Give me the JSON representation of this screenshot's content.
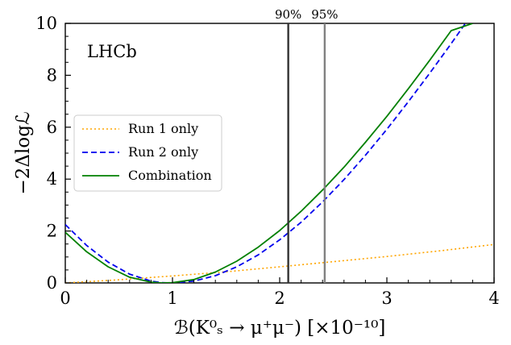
{
  "chart_data": {
    "type": "line",
    "title": "",
    "xlabel": "ℬ(K⁰ₛ → μ⁺μ⁻) [×10⁻¹⁰]",
    "ylabel": "−2Δlogℒ",
    "xlim": [
      0,
      4
    ],
    "ylim": [
      0,
      10
    ],
    "xticks": [
      "0",
      "1",
      "2",
      "3",
      "4"
    ],
    "yticks": [
      "0",
      "2",
      "4",
      "6",
      "8",
      "10"
    ],
    "grid": false,
    "watermark": "LHCb",
    "legend": {
      "placement": "center-left"
    },
    "series": [
      {
        "name": "Run 1 only",
        "color": "#ffa500",
        "style": "dotted",
        "x": [
          0,
          0.5,
          1.0,
          1.5,
          2.0,
          2.5,
          3.0,
          3.5,
          4.0
        ],
        "y": [
          0.0,
          0.12,
          0.27,
          0.43,
          0.62,
          0.82,
          1.02,
          1.24,
          1.48
        ]
      },
      {
        "name": "Run 2 only",
        "color": "#0000ee",
        "style": "dashed",
        "x": [
          0,
          0.2,
          0.4,
          0.6,
          0.8,
          0.9,
          1.0,
          1.2,
          1.4,
          1.6,
          1.8,
          2.0,
          2.2,
          2.4,
          2.6,
          2.8,
          3.0,
          3.2,
          3.4,
          3.6,
          3.8,
          4.0
        ],
        "y": [
          2.25,
          1.44,
          0.8,
          0.34,
          0.07,
          0.01,
          0.0,
          0.07,
          0.28,
          0.62,
          1.08,
          1.66,
          2.34,
          3.12,
          3.98,
          4.92,
          5.92,
          6.98,
          8.08,
          9.22,
          10.4,
          11.6
        ]
      },
      {
        "name": "Combination",
        "color": "#008000",
        "style": "solid",
        "x": [
          0,
          0.2,
          0.4,
          0.6,
          0.8,
          0.9,
          1.0,
          1.2,
          1.4,
          1.6,
          1.8,
          2.0,
          2.2,
          2.4,
          2.6,
          2.8,
          3.0,
          3.2,
          3.4,
          3.6,
          3.8
        ],
        "y": [
          1.95,
          1.2,
          0.62,
          0.22,
          0.03,
          0.0,
          0.01,
          0.13,
          0.42,
          0.84,
          1.38,
          2.02,
          2.76,
          3.58,
          4.46,
          5.42,
          6.42,
          7.48,
          8.58,
          9.72,
          10.0
        ]
      }
    ],
    "vlines": [
      {
        "x": 2.08,
        "label": "90%",
        "color": "#333333"
      },
      {
        "x": 2.42,
        "label": "95%",
        "color": "#808080"
      }
    ]
  }
}
